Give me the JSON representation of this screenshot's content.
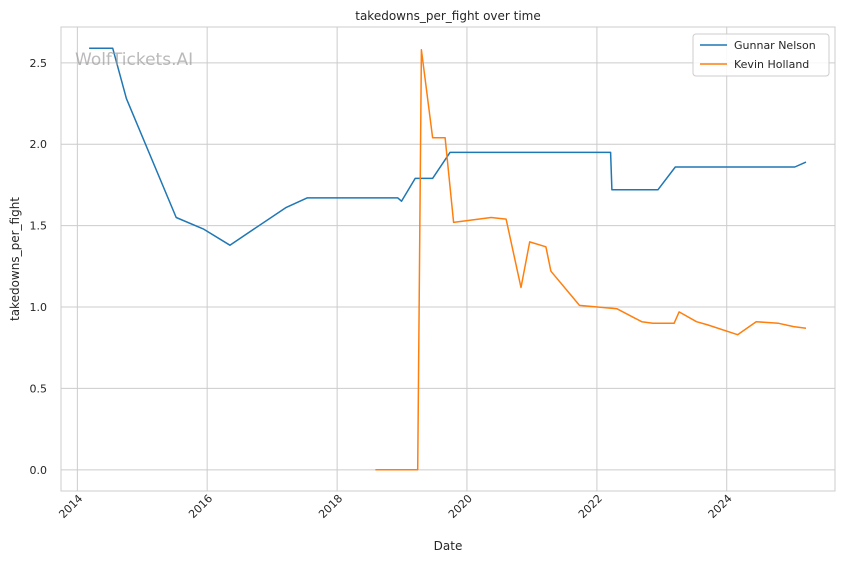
{
  "chart_data": {
    "type": "line",
    "title": "takedowns_per_fight over time",
    "xlabel": "Date",
    "ylabel": "takedowns_per_fight",
    "watermark": "WolfTickets.AI",
    "xlim": [
      "2013-10-01",
      "2025-09-01"
    ],
    "ylim": [
      -0.13,
      2.72
    ],
    "x_ticks": [
      {
        "date": "2014-01-01",
        "label": "2014"
      },
      {
        "date": "2016-01-01",
        "label": "2016"
      },
      {
        "date": "2018-01-01",
        "label": "2018"
      },
      {
        "date": "2020-01-01",
        "label": "2020"
      },
      {
        "date": "2022-01-01",
        "label": "2022"
      },
      {
        "date": "2024-01-01",
        "label": "2024"
      }
    ],
    "y_ticks": [
      {
        "value": 0.0,
        "label": "0.0"
      },
      {
        "value": 0.5,
        "label": "0.5"
      },
      {
        "value": 1.0,
        "label": "1.0"
      },
      {
        "value": 1.5,
        "label": "1.5"
      },
      {
        "value": 2.0,
        "label": "2.0"
      },
      {
        "value": 2.5,
        "label": "2.5"
      }
    ],
    "grid": true,
    "legend_position": "top-right",
    "series": [
      {
        "name": "Gunnar Nelson",
        "color": "#1f77b4",
        "points": [
          {
            "x": "2014-03-08",
            "y": 2.59
          },
          {
            "x": "2014-07-19",
            "y": 2.59
          },
          {
            "x": "2014-10-04",
            "y": 2.28
          },
          {
            "x": "2015-07-11",
            "y": 1.55
          },
          {
            "x": "2015-12-10",
            "y": 1.48
          },
          {
            "x": "2016-05-08",
            "y": 1.38
          },
          {
            "x": "2017-03-18",
            "y": 1.61
          },
          {
            "x": "2017-07-16",
            "y": 1.67
          },
          {
            "x": "2018-12-08",
            "y": 1.67
          },
          {
            "x": "2018-12-29",
            "y": 1.65
          },
          {
            "x": "2019-03-16",
            "y": 1.79
          },
          {
            "x": "2019-06-22",
            "y": 1.79
          },
          {
            "x": "2019-09-28",
            "y": 1.95
          },
          {
            "x": "2022-03-19",
            "y": 1.95
          },
          {
            "x": "2022-03-26",
            "y": 1.72
          },
          {
            "x": "2022-12-10",
            "y": 1.72
          },
          {
            "x": "2023-03-18",
            "y": 1.86
          },
          {
            "x": "2025-01-18",
            "y": 1.86
          },
          {
            "x": "2025-03-22",
            "y": 1.89
          }
        ]
      },
      {
        "name": "Kevin Holland",
        "color": "#ff7f0e",
        "points": [
          {
            "x": "2018-08-04",
            "y": 0.0
          },
          {
            "x": "2019-03-30",
            "y": 0.0
          },
          {
            "x": "2019-04-20",
            "y": 2.58
          },
          {
            "x": "2019-06-22",
            "y": 2.04
          },
          {
            "x": "2019-08-31",
            "y": 2.04
          },
          {
            "x": "2019-10-18",
            "y": 1.52
          },
          {
            "x": "2020-05-16",
            "y": 1.55
          },
          {
            "x": "2020-08-08",
            "y": 1.54
          },
          {
            "x": "2020-10-31",
            "y": 1.12
          },
          {
            "x": "2020-12-19",
            "y": 1.4
          },
          {
            "x": "2021-03-20",
            "y": 1.37
          },
          {
            "x": "2021-04-17",
            "y": 1.22
          },
          {
            "x": "2021-09-25",
            "y": 1.01
          },
          {
            "x": "2022-04-23",
            "y": 0.99
          },
          {
            "x": "2022-09-10",
            "y": 0.91
          },
          {
            "x": "2022-11-12",
            "y": 0.9
          },
          {
            "x": "2023-03-11",
            "y": 0.9
          },
          {
            "x": "2023-04-08",
            "y": 0.97
          },
          {
            "x": "2023-07-15",
            "y": 0.91
          },
          {
            "x": "2023-09-16",
            "y": 0.89
          },
          {
            "x": "2024-03-02",
            "y": 0.83
          },
          {
            "x": "2024-06-15",
            "y": 0.91
          },
          {
            "x": "2024-10-19",
            "y": 0.9
          },
          {
            "x": "2025-01-11",
            "y": 0.88
          },
          {
            "x": "2025-03-22",
            "y": 0.87
          }
        ]
      }
    ]
  }
}
